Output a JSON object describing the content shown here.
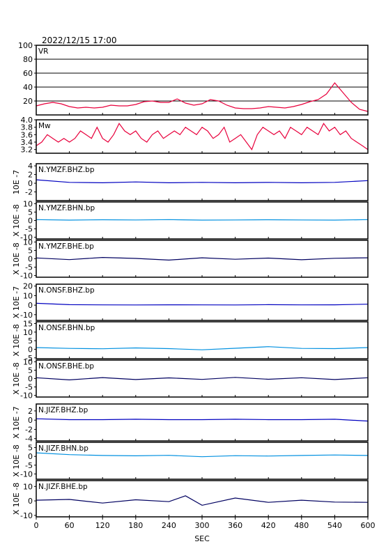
{
  "header": {
    "datetime": "2022/12/15 17:00"
  },
  "x_axis": {
    "label": "SEC",
    "range": [
      0,
      600
    ],
    "ticks": [
      0,
      60,
      120,
      180,
      240,
      300,
      360,
      420,
      480,
      540,
      600
    ],
    "tick_labels": [
      "0",
      "60",
      "120",
      "180",
      "240",
      "300",
      "360",
      "420",
      "480",
      "540",
      "600"
    ]
  },
  "colors": {
    "vr_mw_line": "#e8003c",
    "bhz_line": "#0000c0",
    "bhn_line": "#0090e0",
    "bhe_line": "#000060",
    "frame": "#000000",
    "grid": "#000000"
  },
  "chart_data": [
    {
      "type": "line",
      "id": "vr",
      "panel_label": "VR",
      "ylim": [
        0,
        100
      ],
      "yticks": [
        20,
        40,
        60,
        80,
        100
      ],
      "ytick_labels": [
        "20",
        "40",
        "60",
        "80",
        "100"
      ],
      "grid": true,
      "ylabel": "",
      "x": [
        0,
        15,
        30,
        45,
        60,
        75,
        90,
        105,
        120,
        135,
        150,
        165,
        180,
        195,
        210,
        225,
        240,
        255,
        270,
        285,
        300,
        315,
        330,
        345,
        360,
        375,
        390,
        405,
        420,
        435,
        450,
        465,
        480,
        495,
        510,
        525,
        540,
        555,
        570,
        585,
        600
      ],
      "values": [
        13,
        16,
        18,
        16,
        12,
        10,
        11,
        10,
        11,
        14,
        13,
        13,
        15,
        19,
        20,
        18,
        18,
        23,
        17,
        14,
        16,
        22,
        20,
        14,
        10,
        9,
        9,
        10,
        12,
        11,
        10,
        12,
        15,
        19,
        22,
        30,
        46,
        32,
        18,
        8,
        5
      ]
    },
    {
      "type": "line",
      "id": "mw",
      "panel_label": "Mw",
      "ylim": [
        3.1,
        4.0
      ],
      "yticks": [
        3.2,
        3.4,
        3.6,
        3.8,
        4.0
      ],
      "ytick_labels": [
        "3.2",
        "3.4",
        "3.6",
        "3.8",
        "4.0"
      ],
      "grid": false,
      "ylabel": "",
      "x": [
        0,
        10,
        20,
        30,
        40,
        50,
        60,
        70,
        80,
        90,
        100,
        110,
        120,
        130,
        140,
        150,
        160,
        170,
        180,
        190,
        200,
        210,
        220,
        230,
        240,
        250,
        260,
        270,
        280,
        290,
        300,
        310,
        320,
        330,
        340,
        350,
        360,
        370,
        380,
        390,
        400,
        410,
        420,
        430,
        440,
        450,
        460,
        470,
        480,
        490,
        500,
        510,
        520,
        530,
        540,
        550,
        560,
        570,
        580,
        590,
        600
      ],
      "values": [
        3.3,
        3.4,
        3.6,
        3.5,
        3.4,
        3.5,
        3.4,
        3.5,
        3.7,
        3.6,
        3.5,
        3.8,
        3.5,
        3.4,
        3.6,
        3.9,
        3.7,
        3.6,
        3.7,
        3.5,
        3.4,
        3.6,
        3.7,
        3.5,
        3.6,
        3.7,
        3.6,
        3.8,
        3.7,
        3.6,
        3.8,
        3.7,
        3.5,
        3.6,
        3.8,
        3.4,
        3.5,
        3.6,
        3.4,
        3.2,
        3.6,
        3.8,
        3.7,
        3.6,
        3.7,
        3.5,
        3.8,
        3.7,
        3.6,
        3.8,
        3.7,
        3.6,
        3.9,
        3.7,
        3.8,
        3.6,
        3.7,
        3.5,
        3.4,
        3.3,
        3.2
      ]
    },
    {
      "type": "line",
      "id": "ymzf-bhz",
      "panel_label": "N.YMZF.BHZ.bp",
      "ylabel": "10E -7",
      "ylim": [
        -4,
        4.5
      ],
      "yticks": [
        -2,
        0,
        2,
        4
      ],
      "ytick_labels": [
        "-2",
        "0",
        "2",
        "4"
      ],
      "grid": false,
      "series_color": "bhz_line",
      "x": [
        0,
        60,
        120,
        180,
        240,
        300,
        360,
        420,
        480,
        540,
        600
      ],
      "values": [
        0.8,
        0.2,
        0.1,
        0.3,
        0.1,
        0.2,
        0.1,
        0.2,
        0.1,
        0.2,
        0.6
      ]
    },
    {
      "type": "line",
      "id": "ymzf-bhn",
      "panel_label": "N.YMZF.BHN.bp",
      "ylabel": "X 10E -8",
      "ylim": [
        -11,
        11
      ],
      "yticks": [
        -10,
        -5,
        0,
        5,
        10
      ],
      "ytick_labels": [
        "-10",
        "-5",
        "0",
        "5",
        "10"
      ],
      "grid": false,
      "series_color": "bhn_line",
      "x": [
        0,
        60,
        120,
        180,
        240,
        300,
        360,
        420,
        480,
        540,
        600
      ],
      "values": [
        0.5,
        0.2,
        0.4,
        0.3,
        0.5,
        0.2,
        0.3,
        0.4,
        0.3,
        0.2,
        0.5
      ]
    },
    {
      "type": "line",
      "id": "ymzf-bhe",
      "panel_label": "N.YMZF.BHE.bp",
      "ylabel": "X 10E -8",
      "ylim": [
        -11,
        11
      ],
      "yticks": [
        -10,
        -5,
        0,
        5,
        10
      ],
      "ytick_labels": [
        "-10",
        "-5",
        "0",
        "5",
        "10"
      ],
      "grid": false,
      "series_color": "bhe_line",
      "x": [
        0,
        60,
        120,
        180,
        240,
        300,
        360,
        420,
        480,
        540,
        600
      ],
      "values": [
        0.5,
        -0.5,
        0.8,
        0.2,
        -0.8,
        0.6,
        -0.3,
        0.4,
        -0.6,
        0.3,
        0.6
      ]
    },
    {
      "type": "line",
      "id": "onsf-bhz",
      "panel_label": "N.ONSF.BHZ.bp",
      "ylabel": "X 10E -7",
      "ylim": [
        -16,
        22
      ],
      "yticks": [
        -10,
        0,
        10,
        20
      ],
      "ytick_labels": [
        "-10",
        "0",
        "10",
        "20"
      ],
      "grid": false,
      "series_color": "bhz_line",
      "x": [
        0,
        60,
        120,
        180,
        240,
        300,
        360,
        420,
        480,
        540,
        600
      ],
      "values": [
        2,
        0.5,
        0.3,
        0.2,
        0.4,
        0.3,
        0.2,
        0.5,
        0.3,
        0.4,
        1
      ]
    },
    {
      "type": "line",
      "id": "onsf-bhn",
      "panel_label": "N.ONSF.BHN.bp",
      "ylabel": "X 10E -8",
      "ylim": [
        -5.5,
        16
      ],
      "yticks": [
        -5,
        0,
        5,
        10,
        15
      ],
      "ytick_labels": [
        "-5",
        "0",
        "5",
        "10",
        "15"
      ],
      "grid": false,
      "series_color": "bhn_line",
      "x": [
        0,
        60,
        120,
        180,
        240,
        300,
        360,
        420,
        480,
        540,
        600
      ],
      "values": [
        1,
        0.5,
        0.3,
        0.8,
        0.4,
        -0.3,
        0.6,
        1.5,
        0.5,
        0.4,
        1
      ]
    },
    {
      "type": "line",
      "id": "onsf-bhe",
      "panel_label": "N.ONSF.BHE.bp",
      "ylabel": "X 10E -8",
      "ylim": [
        -11,
        11
      ],
      "yticks": [
        -10,
        -5,
        0,
        5,
        10
      ],
      "ytick_labels": [
        "-10",
        "-5",
        "0",
        "5",
        "10"
      ],
      "grid": false,
      "series_color": "bhe_line",
      "x": [
        0,
        60,
        120,
        180,
        240,
        300,
        360,
        420,
        480,
        540,
        600
      ],
      "values": [
        0.5,
        -0.8,
        0.6,
        -0.6,
        0.4,
        -0.5,
        0.7,
        -0.4,
        0.5,
        -0.6,
        0.5
      ]
    },
    {
      "type": "line",
      "id": "jizf-bhz",
      "panel_label": "N.JIZF.BHZ.bp",
      "ylabel": "X 10E -7",
      "ylim": [
        -4.5,
        3.5
      ],
      "yticks": [
        -4,
        -2,
        0,
        2
      ],
      "ytick_labels": [
        "-4",
        "-2",
        "0",
        "2"
      ],
      "grid": false,
      "series_color": "bhz_line",
      "x": [
        0,
        60,
        120,
        180,
        240,
        300,
        360,
        420,
        480,
        540,
        600
      ],
      "values": [
        0.3,
        0.1,
        0.1,
        0.2,
        0.1,
        0.1,
        0.2,
        0.1,
        0.1,
        0.2,
        -0.2
      ]
    },
    {
      "type": "line",
      "id": "jizf-bhn",
      "panel_label": "N.JIZF.BHN.bp",
      "ylabel": "X 10E -8",
      "ylim": [
        -13,
        8
      ],
      "yticks": [
        -10,
        -5,
        0,
        5
      ],
      "ytick_labels": [
        "-10",
        "-5",
        "0",
        "5"
      ],
      "grid": false,
      "series_color": "bhn_line",
      "x": [
        0,
        60,
        120,
        180,
        240,
        300,
        360,
        420,
        480,
        540,
        600
      ],
      "values": [
        2,
        1,
        0.5,
        0.3,
        0.6,
        -0.2,
        0.4,
        0.2,
        0.5,
        0.8,
        0.5
      ]
    },
    {
      "type": "line",
      "id": "jizf-bhe",
      "panel_label": "N.JIZF.BHE.bp",
      "ylabel": "X 10E -8",
      "ylim": [
        -11,
        14
      ],
      "yticks": [
        -10,
        0,
        10
      ],
      "ytick_labels": [
        "-10",
        "0",
        "10"
      ],
      "grid": false,
      "series_color": "bhe_line",
      "x": [
        0,
        60,
        120,
        180,
        240,
        270,
        300,
        360,
        420,
        480,
        540,
        600
      ],
      "values": [
        0.5,
        1,
        -1.5,
        0.8,
        -0.5,
        3.5,
        -3,
        2,
        -1,
        0.5,
        -0.8,
        -1
      ]
    }
  ]
}
